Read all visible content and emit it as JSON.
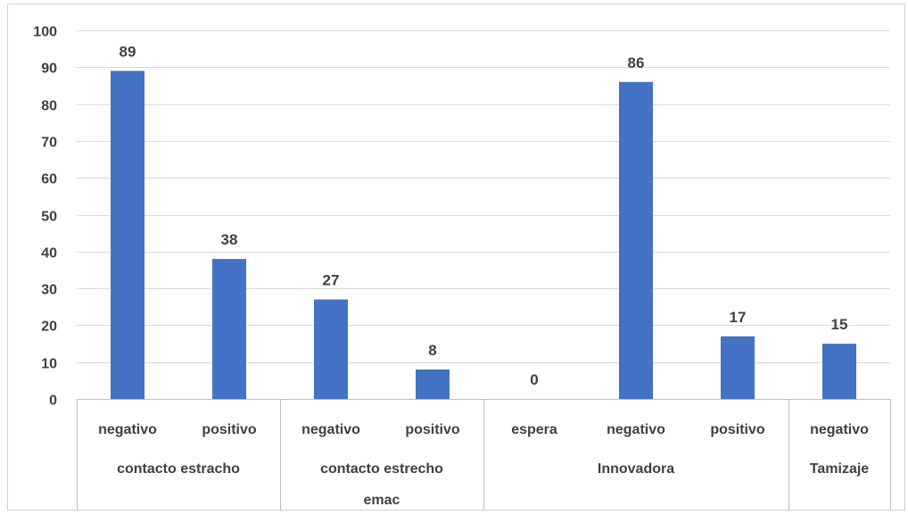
{
  "chart_data": {
    "type": "bar",
    "ylim": [
      0,
      100
    ],
    "yticks": [
      0,
      10,
      20,
      30,
      40,
      50,
      60,
      70,
      80,
      90,
      100
    ],
    "grid": true,
    "colors": {
      "bar": "#4472c4",
      "grid": "#d9d9d9",
      "text": "#404040"
    },
    "bars": [
      {
        "category": "negativo",
        "group": 0,
        "value": 89
      },
      {
        "category": "positivo",
        "group": 0,
        "value": 38
      },
      {
        "category": "negativo",
        "group": 1,
        "value": 27
      },
      {
        "category": "positivo",
        "group": 1,
        "value": 8
      },
      {
        "category": "espera",
        "group": 2,
        "value": 0
      },
      {
        "category": "negativo",
        "group": 2,
        "value": 86
      },
      {
        "category": "positivo",
        "group": 2,
        "value": 17
      },
      {
        "category": "negativo",
        "group": 3,
        "value": 15
      }
    ],
    "groups": [
      {
        "lines": [
          "contacto estracho"
        ]
      },
      {
        "lines": [
          "contacto estrecho",
          "emac"
        ]
      },
      {
        "lines": [
          "Innovadora"
        ]
      },
      {
        "lines": [
          "Tamizaje"
        ]
      }
    ]
  }
}
